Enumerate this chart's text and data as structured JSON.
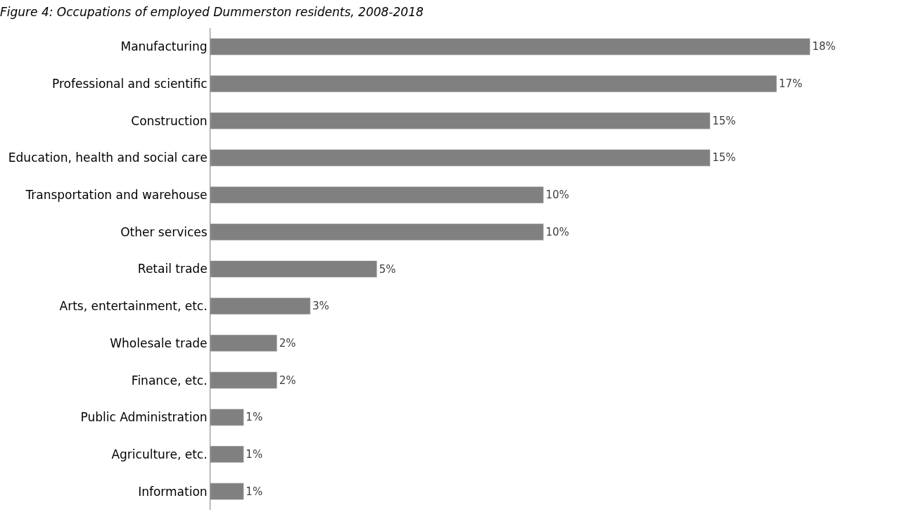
{
  "chart_data": {
    "type": "bar",
    "orientation": "horizontal",
    "title": "Figure 4: Occupations of employed Dummerston residents, 2008-2018",
    "categories": [
      "Manufacturing",
      "Professional and scientific",
      "Construction",
      "Education, health and social care",
      "Transportation and warehouse",
      "Other services",
      "Retail trade",
      "Arts, entertainment, etc.",
      "Wholesale trade",
      "Finance, etc.",
      "Public Administration",
      "Agriculture, etc.",
      "Information"
    ],
    "values": [
      18,
      17,
      15,
      15,
      10,
      10,
      5,
      3,
      2,
      2,
      1,
      1,
      1
    ],
    "value_labels": [
      "18%",
      "17%",
      "15%",
      "15%",
      "10%",
      "10%",
      "5%",
      "3%",
      "2%",
      "2%",
      "1%",
      "1%",
      "1%"
    ],
    "color": "#808080"
  }
}
